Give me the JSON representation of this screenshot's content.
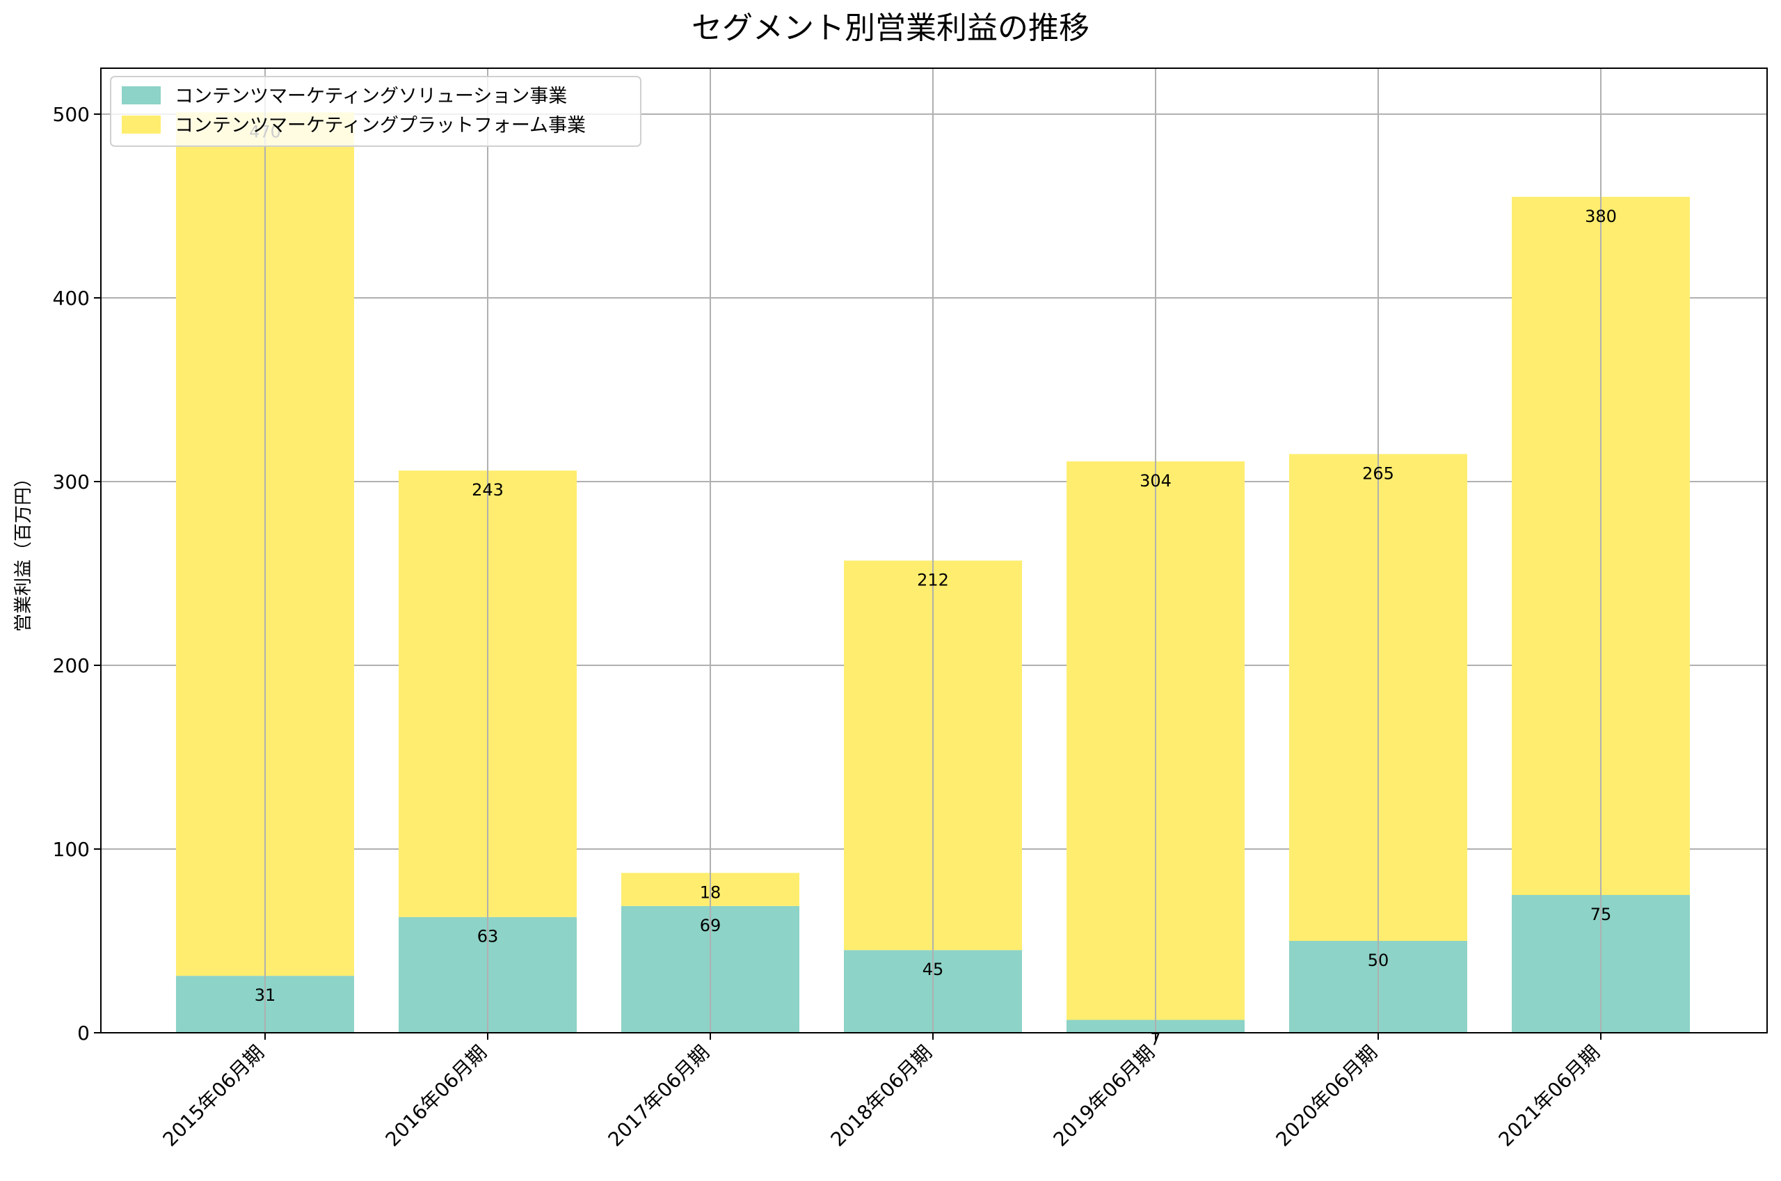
{
  "chart_data": {
    "type": "bar",
    "stacked": true,
    "title": "セグメント別営業利益の推移",
    "xlabel": "",
    "ylabel": "営業利益（百万円）",
    "ylim": [
      0,
      525
    ],
    "yticks": [
      0,
      100,
      200,
      300,
      400,
      500
    ],
    "grid": true,
    "legend_position": "top-left",
    "categories": [
      "2015年06月期",
      "2016年06月期",
      "2017年06月期",
      "2018年06月期",
      "2019年06月期",
      "2020年06月期",
      "2021年06月期"
    ],
    "series": [
      {
        "name": "コンテンツマーケティングソリューション事業",
        "color": "#8dd3c7",
        "values": [
          31,
          63,
          69,
          45,
          7,
          50,
          75
        ]
      },
      {
        "name": "コンテンツマーケティングプラットフォーム事業",
        "color": "#ffed6f",
        "values": [
          470,
          243,
          18,
          212,
          304,
          265,
          380
        ]
      }
    ]
  }
}
